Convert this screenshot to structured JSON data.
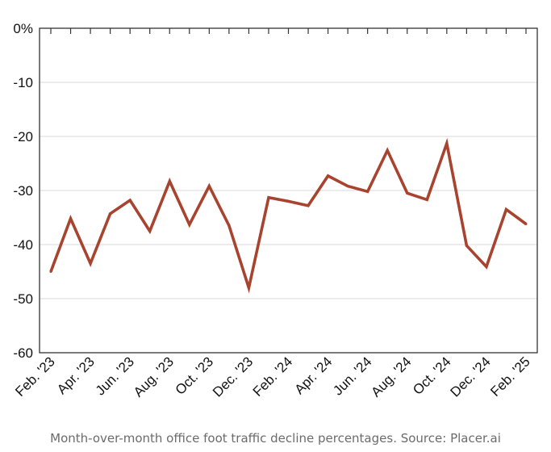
{
  "chart_data": {
    "type": "line",
    "title": "",
    "xlabel": "",
    "ylabel": "",
    "ylim": [
      -60,
      0
    ],
    "yticks": [
      {
        "value": 0,
        "label": "0%"
      },
      {
        "value": -10,
        "label": "-10"
      },
      {
        "value": -20,
        "label": "-20"
      },
      {
        "value": -30,
        "label": "-30"
      },
      {
        "value": -40,
        "label": "-40"
      },
      {
        "value": -50,
        "label": "-50"
      },
      {
        "value": -60,
        "label": "-60"
      }
    ],
    "x": [
      "Feb. '23",
      "Mar. '23",
      "Apr. '23",
      "May '23",
      "Jun. '23",
      "Jul. '23",
      "Aug. '23",
      "Sep. '23",
      "Oct. '23",
      "Nov. '23",
      "Dec. '23",
      "Jan. '24",
      "Feb. '24",
      "Mar. '24",
      "Apr. '24",
      "May '24",
      "Jun. '24",
      "Jul. '24",
      "Aug. '24",
      "Sep. '24",
      "Oct. '24",
      "Nov. '24",
      "Dec. '24",
      "Jan. '25",
      "Feb. '25"
    ],
    "xtick_labels": [
      "Feb. '23",
      "Apr. '23",
      "Jun. '23",
      "Aug. '23",
      "Oct. '23",
      "Dec. '23",
      "Feb. '24",
      "Apr. '24",
      "Jun. '24",
      "Aug. '24",
      "Oct. '24",
      "Dec. '24",
      "Feb. '25"
    ],
    "series": [
      {
        "values": [
          -45.0,
          -35.2,
          -43.5,
          -34.3,
          -31.8,
          -37.5,
          -28.3,
          -36.3,
          -29.2,
          -36.5,
          -48.0,
          -31.3,
          -32.0,
          -32.8,
          -27.3,
          -29.2,
          -30.2,
          -22.6,
          -30.5,
          -31.7,
          -21.3,
          -40.2,
          -44.1,
          -33.5,
          -36.2
        ]
      }
    ],
    "line_color": "#a8432f",
    "grid": true,
    "legend": "none"
  },
  "caption": "Month-over-month office foot traffic decline percentages. Source: Placer.ai"
}
